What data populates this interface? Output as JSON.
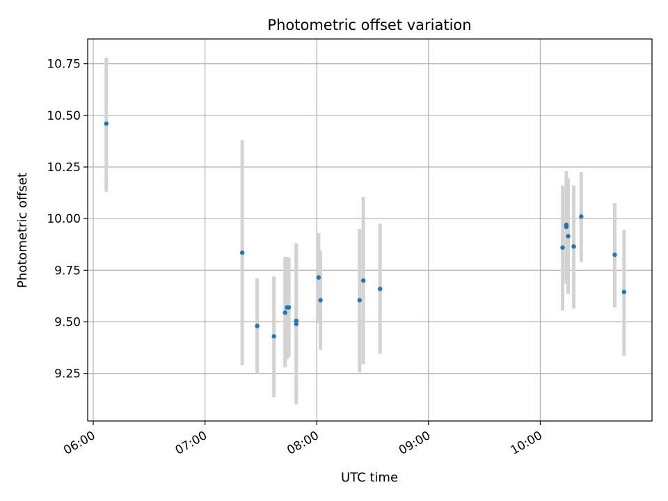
{
  "chart_data": {
    "type": "scatter",
    "title": "Photometric offset variation",
    "xlabel": "UTC time",
    "ylabel": "Photometric offset",
    "xlim": [
      "05:57",
      "11:00"
    ],
    "ylim": [
      9.02,
      10.87
    ],
    "grid": true,
    "x_ticks": [
      "06:00",
      "07:00",
      "08:00",
      "09:00",
      "10:00"
    ],
    "y_ticks": [
      9.25,
      9.5,
      9.75,
      10.0,
      10.25,
      10.5,
      10.75
    ],
    "y_tick_labels": [
      "9.25",
      "9.50",
      "9.75",
      "10.00",
      "10.25",
      "10.50",
      "10.75"
    ],
    "point_color": "#1f77b4",
    "errorbar_color": "#d3d3d3",
    "points": [
      {
        "t": "06:07",
        "y": 10.46,
        "lo": 10.13,
        "hi": 10.78
      },
      {
        "t": "07:20",
        "y": 9.835,
        "lo": 9.29,
        "hi": 10.38
      },
      {
        "t": "07:28",
        "y": 9.48,
        "lo": 9.25,
        "hi": 9.71
      },
      {
        "t": "07:37",
        "y": 9.43,
        "lo": 9.135,
        "hi": 9.72
      },
      {
        "t": "07:43",
        "y": 9.545,
        "lo": 9.28,
        "hi": 9.815
      },
      {
        "t": "07:44",
        "y": 9.57,
        "lo": 9.32,
        "hi": 9.815
      },
      {
        "t": "07:45",
        "y": 9.57,
        "lo": 9.33,
        "hi": 9.81
      },
      {
        "t": "07:49",
        "y": 9.49,
        "lo": 9.1,
        "hi": 9.88
      },
      {
        "t": "07:49",
        "y": 9.505,
        "lo": 9.13,
        "hi": 9.875
      },
      {
        "t": "08:01",
        "y": 9.715,
        "lo": 9.495,
        "hi": 9.93
      },
      {
        "t": "08:02",
        "y": 9.605,
        "lo": 9.365,
        "hi": 9.845
      },
      {
        "t": "08:23",
        "y": 9.605,
        "lo": 9.255,
        "hi": 9.95
      },
      {
        "t": "08:25",
        "y": 9.7,
        "lo": 9.295,
        "hi": 10.105
      },
      {
        "t": "08:34",
        "y": 9.66,
        "lo": 9.345,
        "hi": 9.975
      },
      {
        "t": "10:12",
        "y": 9.86,
        "lo": 9.555,
        "hi": 10.16
      },
      {
        "t": "10:14",
        "y": 9.97,
        "lo": 9.705,
        "hi": 10.23
      },
      {
        "t": "10:14",
        "y": 9.96,
        "lo": 9.685,
        "hi": 10.2
      },
      {
        "t": "10:15",
        "y": 9.915,
        "lo": 9.635,
        "hi": 10.195
      },
      {
        "t": "10:18",
        "y": 9.865,
        "lo": 9.565,
        "hi": 10.16
      },
      {
        "t": "10:22",
        "y": 10.01,
        "lo": 9.79,
        "hi": 10.225
      },
      {
        "t": "10:40",
        "y": 9.825,
        "lo": 9.57,
        "hi": 10.075
      },
      {
        "t": "10:45",
        "y": 9.645,
        "lo": 9.335,
        "hi": 9.945
      }
    ]
  }
}
